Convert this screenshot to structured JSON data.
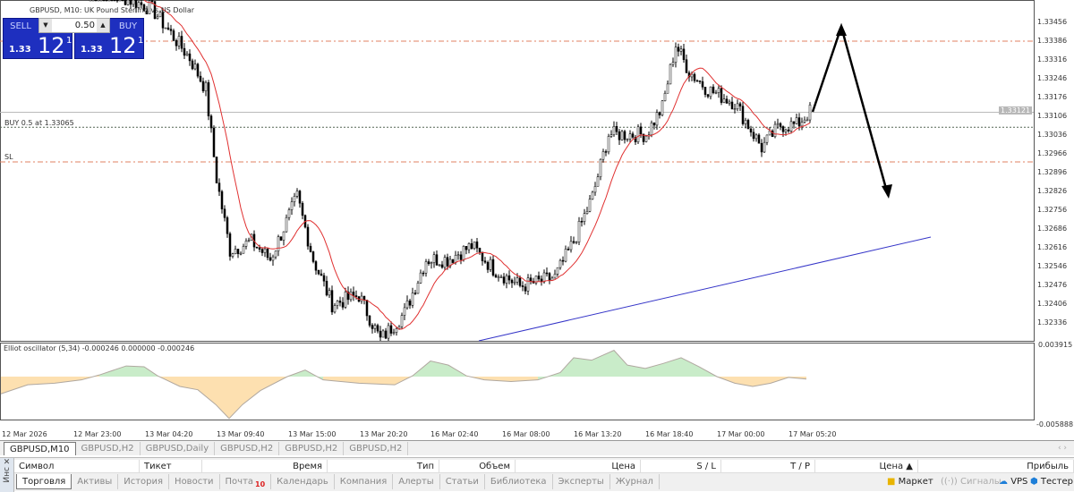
{
  "chart": {
    "title": "GBPUSD, M10:  UK Pound Sterling vs US Dollar",
    "price_ticks": [
      "1.33456",
      "1.33386",
      "1.33316",
      "1.33246",
      "1.33176",
      "1.33106",
      "1.33036",
      "1.32966",
      "1.32896",
      "1.32826",
      "1.32756",
      "1.32686",
      "1.32616",
      "1.32546",
      "1.32476",
      "1.32406",
      "1.32336"
    ],
    "current_price": "1.33121",
    "order_label": "BUY 0.5 at 1.33065",
    "order_price": 1.33065,
    "sl_label": "SL",
    "sl_price": 1.32936,
    "tp_price": 1.33386,
    "time_ticks": [
      "12 Mar 2026",
      "12 Mar 23:00",
      "13 Mar 04:20",
      "13 Mar 09:40",
      "13 Mar 15:00",
      "13 Mar 20:20",
      "16 Mar 02:40",
      "16 Mar 08:00",
      "16 Mar 13:20",
      "16 Mar 18:40",
      "17 Mar 00:00",
      "17 Mar 05:20"
    ],
    "price_path": [
      [
        0,
        1.336
      ],
      [
        23,
        1.33506
      ],
      [
        37,
        1.33323
      ],
      [
        43,
        1.33206
      ],
      [
        47,
        1.32873
      ],
      [
        52,
        1.32606
      ],
      [
        60,
        1.32639
      ],
      [
        67,
        1.32573
      ],
      [
        77,
        1.32806
      ],
      [
        83,
        1.32573
      ],
      [
        90,
        1.32406
      ],
      [
        100,
        1.32439
      ],
      [
        108,
        1.32273
      ],
      [
        117,
        1.32373
      ],
      [
        125,
        1.32573
      ],
      [
        133,
        1.32573
      ],
      [
        142,
        1.32623
      ],
      [
        150,
        1.32539
      ],
      [
        160,
        1.32473
      ],
      [
        167,
        1.32489
      ],
      [
        173,
        1.32506
      ],
      [
        180,
        1.32639
      ],
      [
        187,
        1.32806
      ],
      [
        193,
        1.33039
      ],
      [
        200,
        1.33039
      ],
      [
        207,
        1.33039
      ],
      [
        213,
        1.33139
      ],
      [
        218,
        1.33373
      ],
      [
        223,
        1.33273
      ],
      [
        230,
        1.33206
      ],
      [
        240,
        1.33156
      ],
      [
        250,
        1.32989
      ],
      [
        257,
        1.33073
      ],
      [
        263,
        1.33073
      ],
      [
        268,
        1.33123
      ]
    ]
  },
  "oscillator": {
    "label": "Elliot oscillator (5,34) -0.000246 0.000000 -0.000246",
    "max_tick": "0.003915",
    "min_tick": "-0.005888",
    "values": [
      [
        0,
        -0.0021
      ],
      [
        30,
        -0.001
      ],
      [
        60,
        -0.0008
      ],
      [
        90,
        -0.0004
      ],
      [
        110,
        0.0002
      ],
      [
        140,
        0.0013
      ],
      [
        160,
        0.0012
      ],
      [
        175,
        0.0001
      ],
      [
        200,
        -0.0012
      ],
      [
        220,
        -0.0016
      ],
      [
        240,
        -0.0034
      ],
      [
        255,
        -0.0051
      ],
      [
        270,
        -0.0034
      ],
      [
        290,
        -0.0017
      ],
      [
        320,
        0
      ],
      [
        340,
        0.0008
      ],
      [
        360,
        -0.0004
      ],
      [
        400,
        -0.0008
      ],
      [
        440,
        -0.001
      ],
      [
        460,
        0.0001
      ],
      [
        480,
        0.0019
      ],
      [
        500,
        0.0014
      ],
      [
        520,
        0.0001
      ],
      [
        540,
        -0.0004
      ],
      [
        570,
        -0.0006
      ],
      [
        600,
        -0.0004
      ],
      [
        625,
        0.0005
      ],
      [
        640,
        0.0023
      ],
      [
        660,
        0.002
      ],
      [
        685,
        0.0032
      ],
      [
        700,
        0.0014
      ],
      [
        720,
        0.001
      ],
      [
        740,
        0.0016
      ],
      [
        760,
        0.0023
      ],
      [
        780,
        0.0012
      ],
      [
        800,
        0
      ],
      [
        820,
        -0.0008
      ],
      [
        840,
        -0.0012
      ],
      [
        860,
        -0.0008
      ],
      [
        880,
        -0.0001
      ],
      [
        900,
        -0.0003
      ]
    ]
  },
  "trade": {
    "sell": "SELL",
    "buy": "BUY",
    "volume": "0.50",
    "sell_small": "1.33",
    "sell_big": "12",
    "sell_sup": "1",
    "buy_small": "1.33",
    "buy_big": "12",
    "buy_sup": "1"
  },
  "chart_tabs": [
    "GBPUSD,M10",
    "GBPUSD,H2",
    "GBPUSD,Daily",
    "GBPUSD,H2",
    "GBPUSD,H2",
    "GBPUSD,H2"
  ],
  "toolbox": {
    "side": "Инс",
    "columns": [
      "Символ",
      "Тикет",
      "Время",
      "Тип",
      "Объем",
      "Цена",
      "S / L",
      "T / P",
      "Цена ▲",
      "Прибыль"
    ],
    "tabs": [
      "Торговля",
      "Активы",
      "История",
      "Новости",
      "Почта",
      "Календарь",
      "Компания",
      "Алерты",
      "Статьи",
      "Библиотека",
      "Эксперты",
      "Журнал"
    ],
    "mail_badge": "10",
    "market": "Маркет",
    "signals": "Сигналы",
    "vps": "VPS",
    "tester": "Тестер"
  },
  "colors": {
    "candle": "#000",
    "ma": "#e03030",
    "trend": "#3535c8",
    "osc_up": "#c9ecc9",
    "osc_down": "#fde0b0"
  }
}
